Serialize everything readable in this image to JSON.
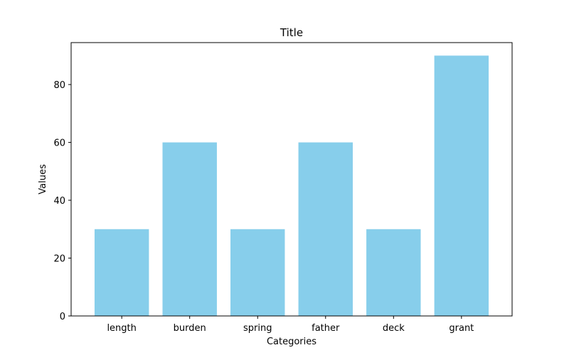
{
  "chart_data": {
    "type": "bar",
    "title": "Title",
    "xlabel": "Categories",
    "ylabel": "Values",
    "categories": [
      "length",
      "burden",
      "spring",
      "father",
      "deck",
      "grant"
    ],
    "values": [
      30,
      60,
      30,
      60,
      30,
      90
    ],
    "yticks": [
      0,
      20,
      40,
      60,
      80
    ],
    "ylim": [
      0,
      94.5
    ],
    "bar_color": "#87ceeb",
    "grid": false,
    "legend": "none"
  }
}
